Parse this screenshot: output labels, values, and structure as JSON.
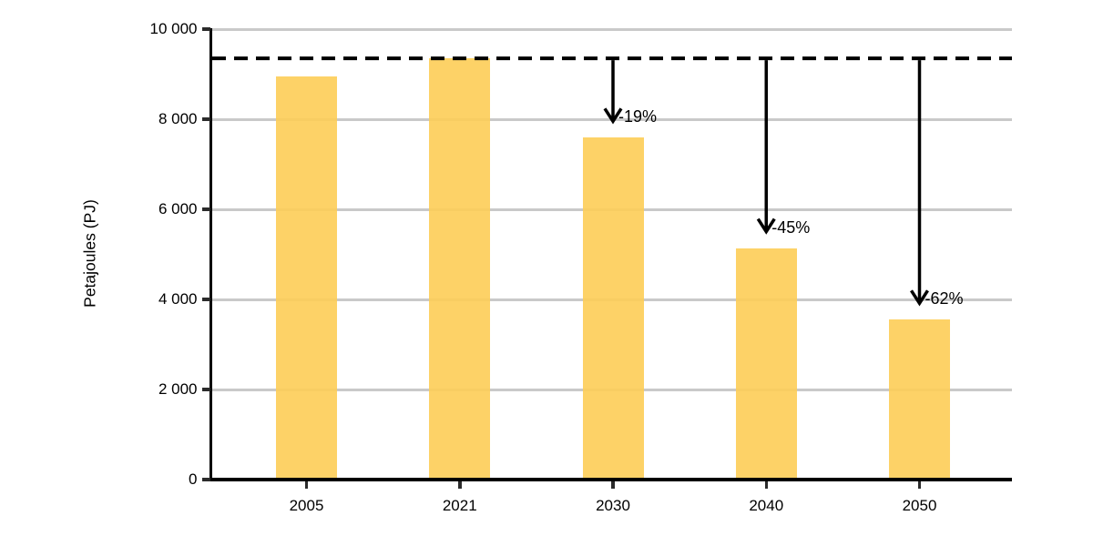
{
  "figure": {
    "background": "#FFFFFF"
  },
  "chart_data": {
    "type": "bar",
    "title": "",
    "categories": [
      "2005",
      "2021",
      "2030",
      "2040",
      "2050"
    ],
    "values": [
      8950,
      9350,
      7590,
      5140,
      3550
    ],
    "xlabel": "",
    "ylabel": "Petajoules (PJ)",
    "ylim": [
      0,
      10000
    ],
    "yticks": [
      0,
      2000,
      4000,
      6000,
      8000,
      10000
    ],
    "ytick_labels": [
      "0",
      "2 000",
      "4 000",
      "6 000",
      "8 000",
      "10 000"
    ],
    "grid": "horizontal-only",
    "legend": "none",
    "bar_color": "#FDCD56",
    "grid_color": "#C9C9C9",
    "axis_color": "#000000",
    "text_color": "#000000",
    "reference_line": {
      "value": 9350,
      "style": "dashed",
      "color": "#000000"
    },
    "annotations": [
      {
        "category": "2030",
        "label": "-19%",
        "arrow": "down-from-reference-line"
      },
      {
        "category": "2040",
        "label": "-45%",
        "arrow": "down-from-reference-line"
      },
      {
        "category": "2050",
        "label": "-62%",
        "arrow": "down-from-reference-line"
      }
    ]
  }
}
